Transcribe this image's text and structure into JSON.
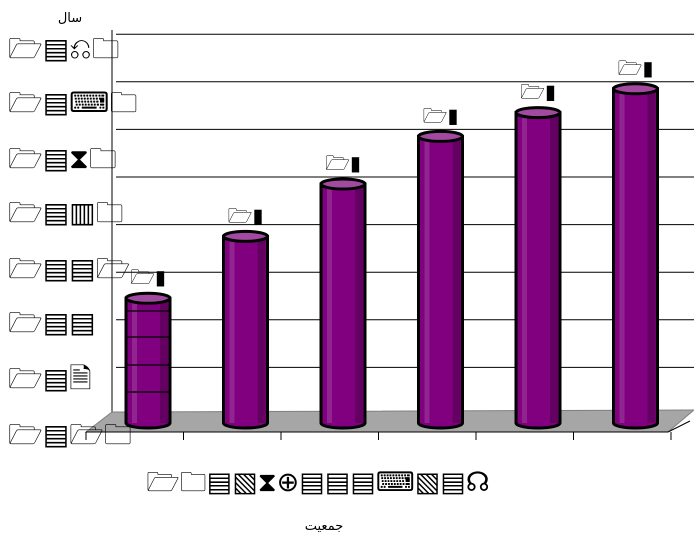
{
  "chart_data": {
    "type": "bar",
    "style": "3d-cylinder",
    "xlabel": "جمعیت",
    "ylabel": "سال",
    "ytick_labels": [
      "🗁▤⎌🗀",
      "🗁▤⌨🗀",
      "🗁▤⧗🗀",
      "🗁▤▥🗀",
      "🗁▤▤🗁",
      "🗁▤▤",
      "🗁▤🗎",
      "🗁▤🗁🗀"
    ],
    "xtick_labels": "🗁🗀▤▧⧗⊕▤▤▤⌨▧▤☊",
    "data_labels": [
      "🗁▮",
      "🗁▮",
      "🗁▮",
      "🗁▮",
      "🗁▮",
      "🗁▮"
    ],
    "values": [
      2.6,
      3.9,
      5.0,
      6.0,
      6.5,
      7.0
    ],
    "ylim": [
      0,
      8
    ],
    "grid": true,
    "legend": "none",
    "colors": {
      "bar": "#800080",
      "bar_dark": "#4a0048",
      "bar_light": "#a24aa0",
      "floor": "#a6a6a6",
      "grid": "#000000"
    }
  }
}
